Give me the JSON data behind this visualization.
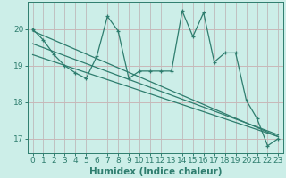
{
  "title": "",
  "xlabel": "Humidex (Indice chaleur)",
  "ylabel": "",
  "background_color": "#cceee8",
  "plot_bg_color": "#cceee8",
  "line_color": "#2e7d6e",
  "grid_color_h": "#c8b8b8",
  "grid_color_v": "#c0c0c0",
  "x_values": [
    0,
    1,
    2,
    3,
    4,
    5,
    6,
    7,
    8,
    9,
    10,
    11,
    12,
    13,
    14,
    15,
    16,
    17,
    18,
    19,
    20,
    21,
    22,
    23
  ],
  "y_values": [
    20.0,
    19.7,
    19.3,
    19.0,
    18.8,
    18.65,
    19.25,
    20.35,
    19.95,
    18.65,
    18.85,
    18.85,
    18.85,
    18.85,
    20.5,
    19.8,
    20.45,
    19.1,
    19.35,
    19.35,
    18.05,
    17.55,
    16.8,
    17.0
  ],
  "trend1_x": [
    0,
    23
  ],
  "trend1_y": [
    19.95,
    17.05
  ],
  "trend2_x": [
    0,
    23
  ],
  "trend2_y": [
    19.6,
    17.1
  ],
  "trend3_x": [
    0,
    23
  ],
  "trend3_y": [
    19.3,
    17.05
  ],
  "ylim_min": 16.6,
  "ylim_max": 20.75,
  "xlim_min": -0.5,
  "xlim_max": 23.5,
  "yticks": [
    17,
    18,
    19,
    20
  ],
  "xticks": [
    0,
    1,
    2,
    3,
    4,
    5,
    6,
    7,
    8,
    9,
    10,
    11,
    12,
    13,
    14,
    15,
    16,
    17,
    18,
    19,
    20,
    21,
    22,
    23
  ],
  "tick_fontsize": 6.5,
  "xlabel_fontsize": 7.5,
  "marker_size": 3,
  "lw": 0.9
}
